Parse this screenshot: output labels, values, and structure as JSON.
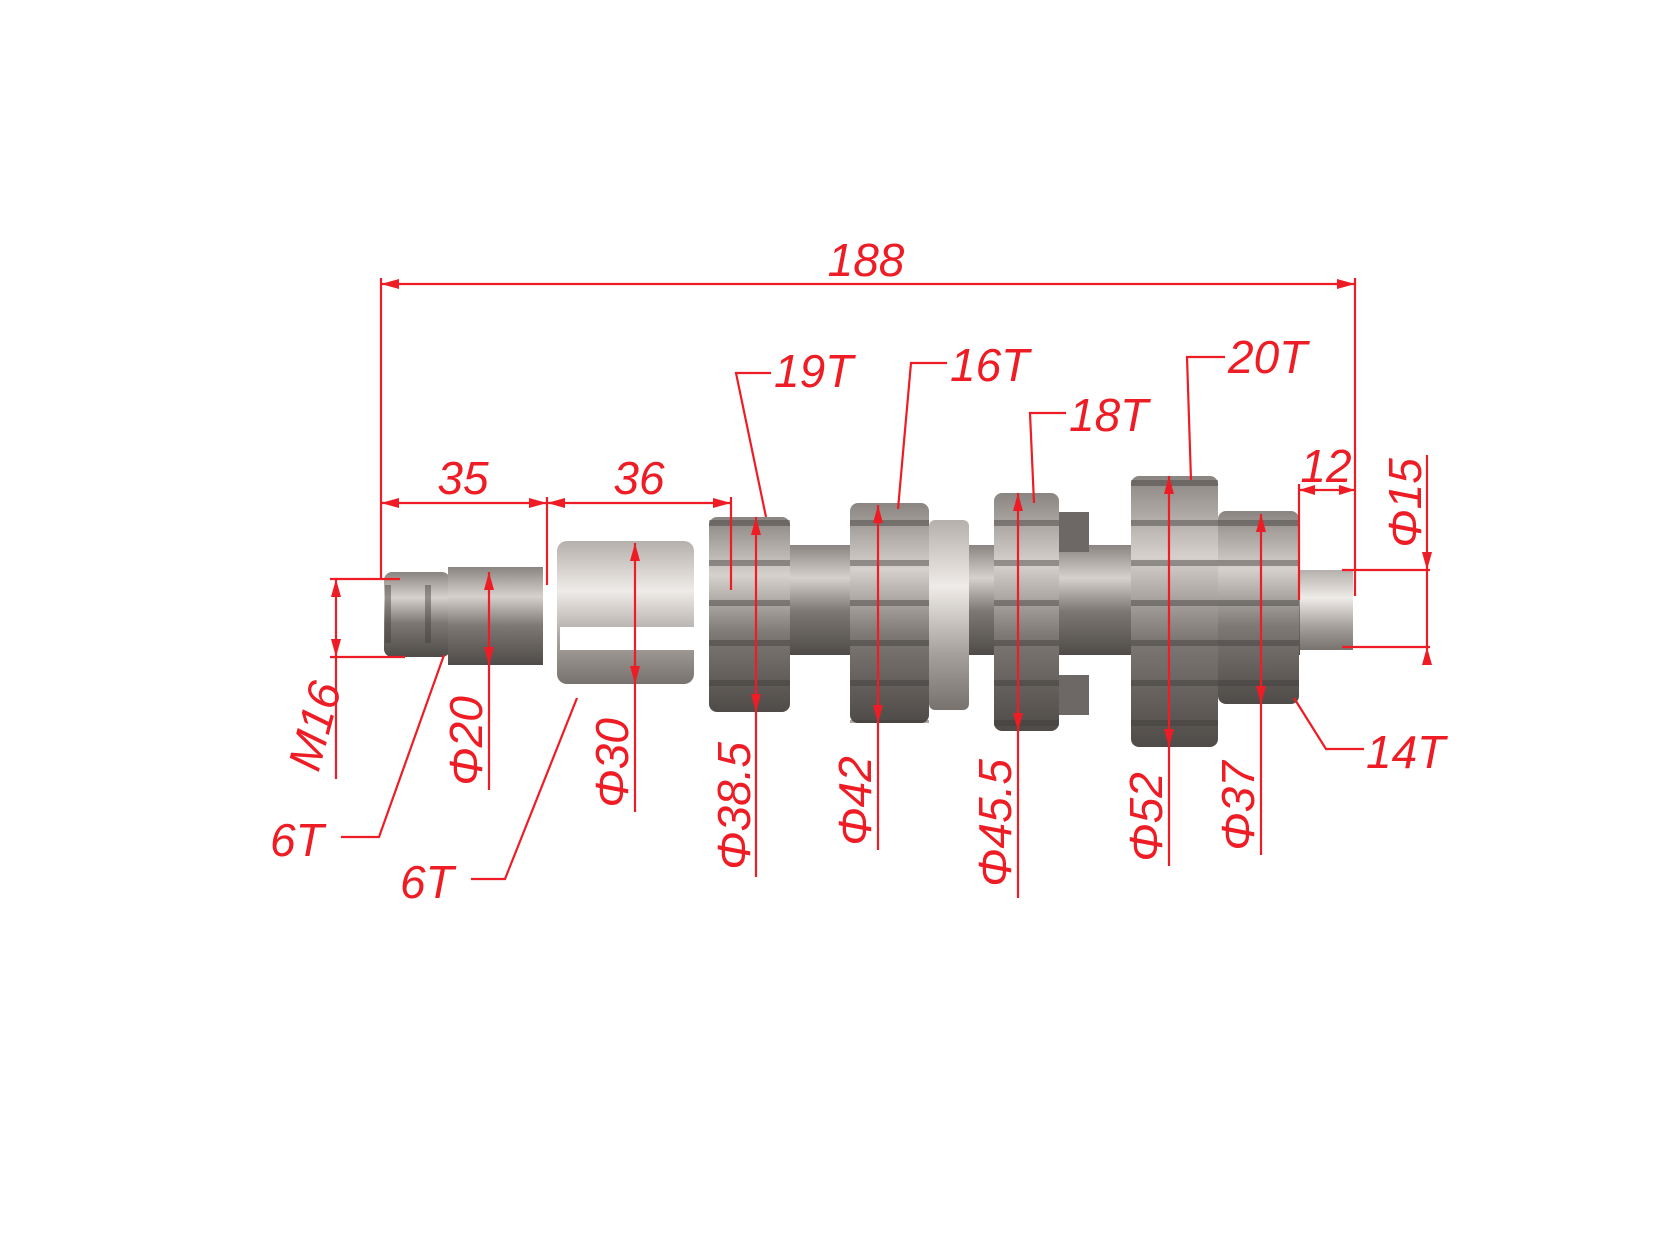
{
  "colors": {
    "annotation": "#ee1c24",
    "metal_dark": "#5e5a57",
    "metal_light": "#cfcac6",
    "background": "#ffffff"
  },
  "lengths": {
    "overall": "188",
    "thread_section": "35",
    "spline_section": "36",
    "end_journal": "12"
  },
  "diameters": {
    "thread": "M16",
    "spline": "Φ20",
    "sleeve": "Φ30",
    "gear1": "Φ38.5",
    "gear2": "Φ42",
    "gear3": "Φ45.5",
    "gear4": "Φ52",
    "gear5": "Φ37",
    "end_journal": "Φ15"
  },
  "teeth": {
    "spline1": "6T",
    "spline2": "6T",
    "gear1": "19T",
    "gear2": "16T",
    "gear3": "18T",
    "gear4": "20T",
    "gear5": "14T"
  }
}
